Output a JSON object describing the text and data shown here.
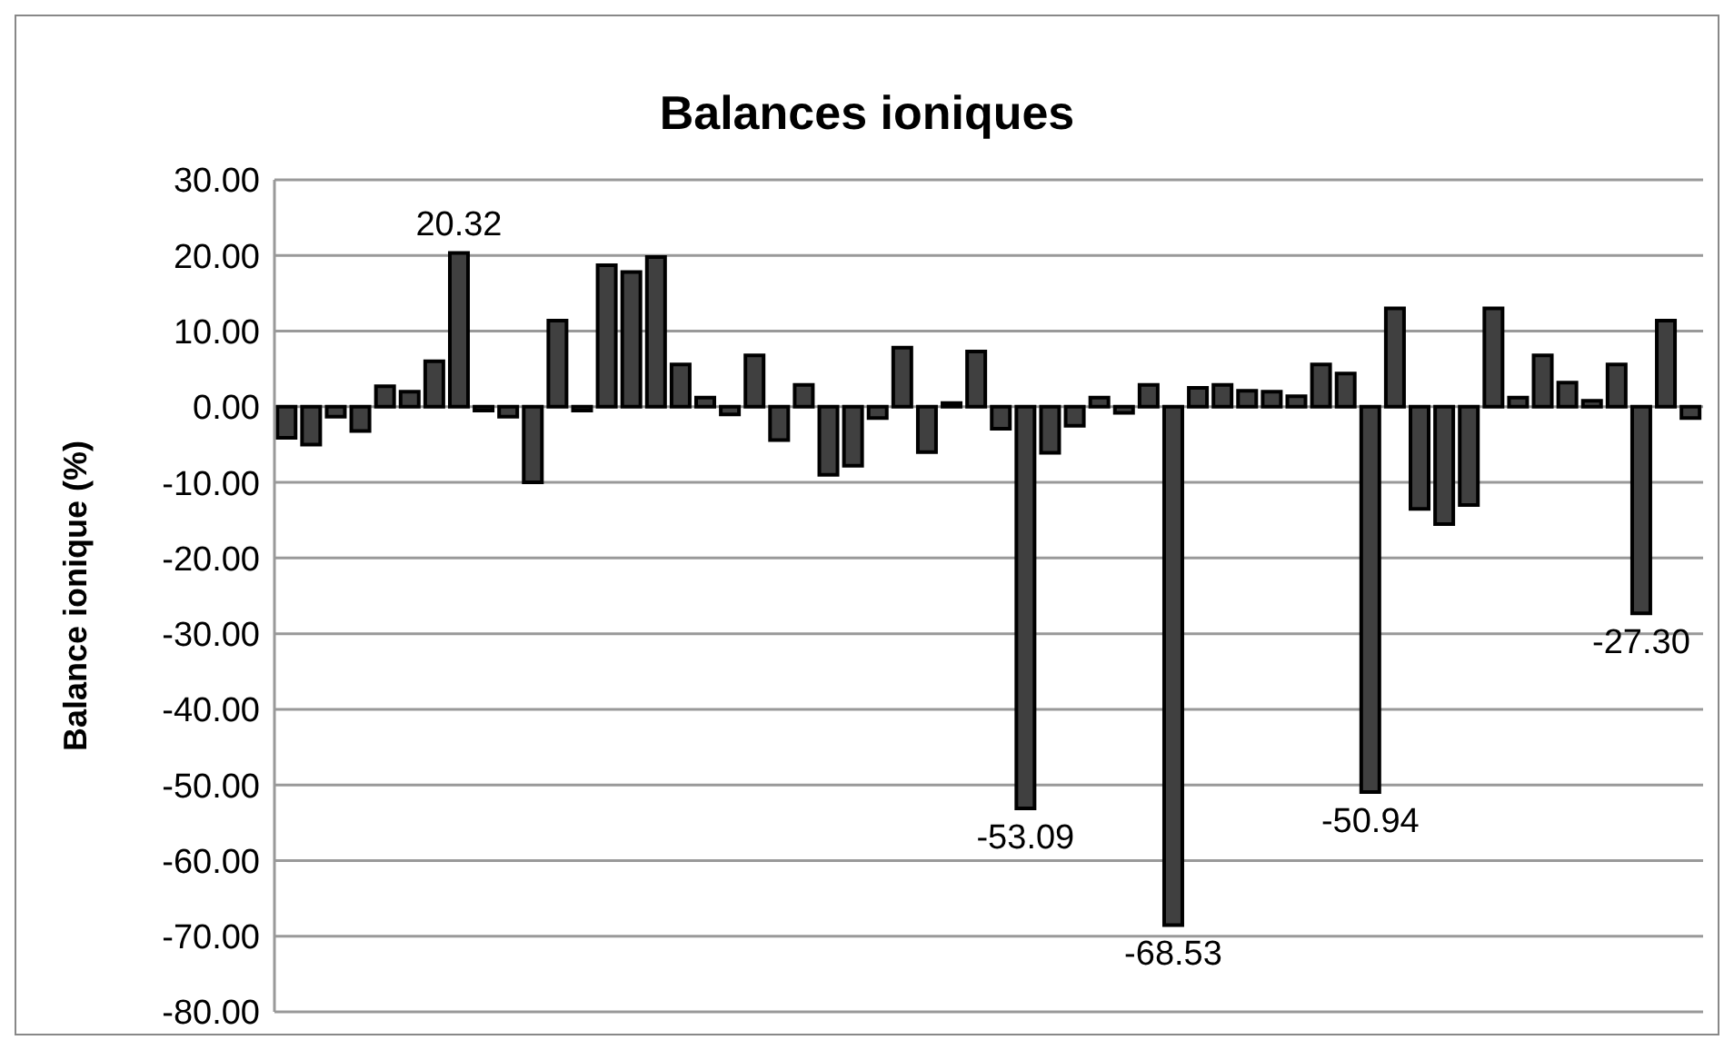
{
  "chart_data": {
    "type": "bar",
    "title": "Balances ioniques",
    "ylabel": "Balance ionique (%)",
    "categories": [
      null,
      null,
      null,
      null,
      null,
      null,
      null,
      null,
      null,
      null,
      null,
      null,
      null,
      null,
      null,
      null,
      null,
      null,
      null,
      null,
      null,
      null,
      null,
      null,
      null,
      null,
      null,
      null,
      null,
      null,
      null,
      null,
      null,
      null,
      null,
      null,
      null,
      null,
      null,
      null,
      null,
      null,
      null,
      null,
      null,
      null,
      null,
      null,
      null,
      null,
      null,
      null,
      null,
      null,
      null,
      null,
      null,
      null
    ],
    "values": [
      -4.1,
      -5,
      -1.3,
      -3.2,
      2.7,
      2,
      6,
      20.32,
      -0.5,
      -1.3,
      -10,
      11.4,
      -0.5,
      18.7,
      17.8,
      19.8,
      5.6,
      1.2,
      -1,
      6.8,
      -4.4,
      2.9,
      -9,
      -7.8,
      -1.5,
      7.8,
      -6,
      0.5,
      7.3,
      -2.9,
      -53.09,
      -6.1,
      -2.5,
      1.2,
      -0.8,
      2.9,
      -68.53,
      2.5,
      2.9,
      2.1,
      2,
      1.4,
      5.6,
      4.4,
      -50.94,
      13,
      -13.5,
      -15.5,
      -13,
      13,
      1.2,
      6.8,
      3.2,
      0.8,
      5.6,
      -27.3,
      11.4,
      -1.5
    ],
    "value_labels": [
      null,
      null,
      null,
      null,
      null,
      null,
      null,
      "20.32",
      null,
      null,
      null,
      null,
      null,
      null,
      null,
      null,
      null,
      null,
      null,
      null,
      null,
      null,
      null,
      null,
      null,
      null,
      null,
      null,
      null,
      null,
      "-53.09",
      null,
      null,
      null,
      null,
      null,
      "-68.53",
      null,
      null,
      null,
      null,
      null,
      null,
      null,
      "-50.94",
      null,
      null,
      null,
      null,
      null,
      null,
      null,
      null,
      null,
      null,
      "-27.30",
      null,
      null
    ],
    "color": "#404040",
    "ylim": [
      -80,
      30
    ],
    "yticks": [
      {
        "value": -80,
        "label": "-80.00"
      },
      {
        "value": -70,
        "label": "-70.00"
      },
      {
        "value": -60,
        "label": "-60.00"
      },
      {
        "value": -50,
        "label": "-50.00"
      },
      {
        "value": -40,
        "label": "-40.00"
      },
      {
        "value": -30,
        "label": "-30.00"
      },
      {
        "value": -20,
        "label": "-20.00"
      },
      {
        "value": -10,
        "label": "-10.00"
      },
      {
        "value": 0,
        "label": "0.00"
      },
      {
        "value": 10,
        "label": "10.00"
      },
      {
        "value": 20,
        "label": "20.00"
      },
      {
        "value": 30,
        "label": "30.00"
      }
    ],
    "grid": "y",
    "legend": false
  }
}
